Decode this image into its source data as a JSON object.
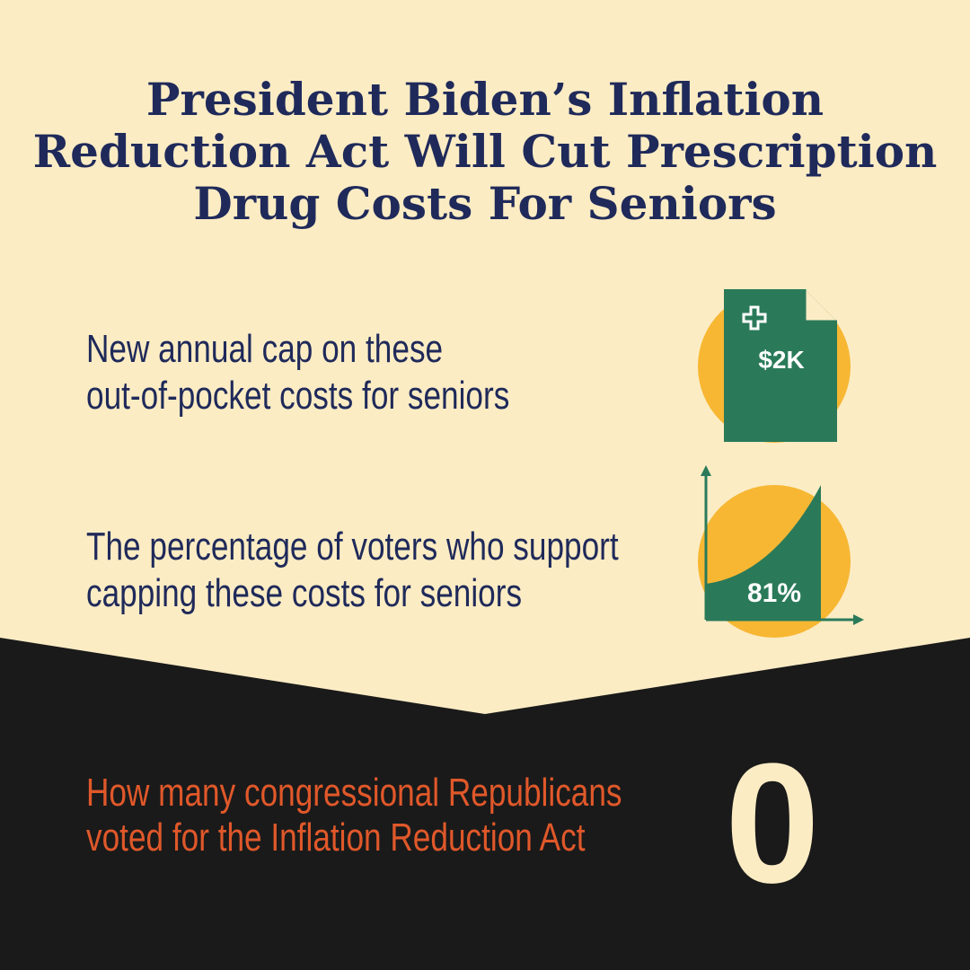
{
  "header": {
    "title": [
      "President Biden’s Inflation",
      "Reduction Act Will Cut Prescription",
      "Drug Costs For Seniors"
    ]
  },
  "items": [
    {
      "text": [
        "New annual cap on these",
        "out-of-pocket costs for seniors"
      ],
      "stat": "$2K"
    },
    {
      "text": [
        "The percentage of voters who support",
        "capping these costs for seniors"
      ],
      "stat": "81%"
    },
    {
      "text": [
        "How many congressional Republicans",
        "voted for the Inflation Reduction Act"
      ],
      "stat": "0"
    }
  ]
}
